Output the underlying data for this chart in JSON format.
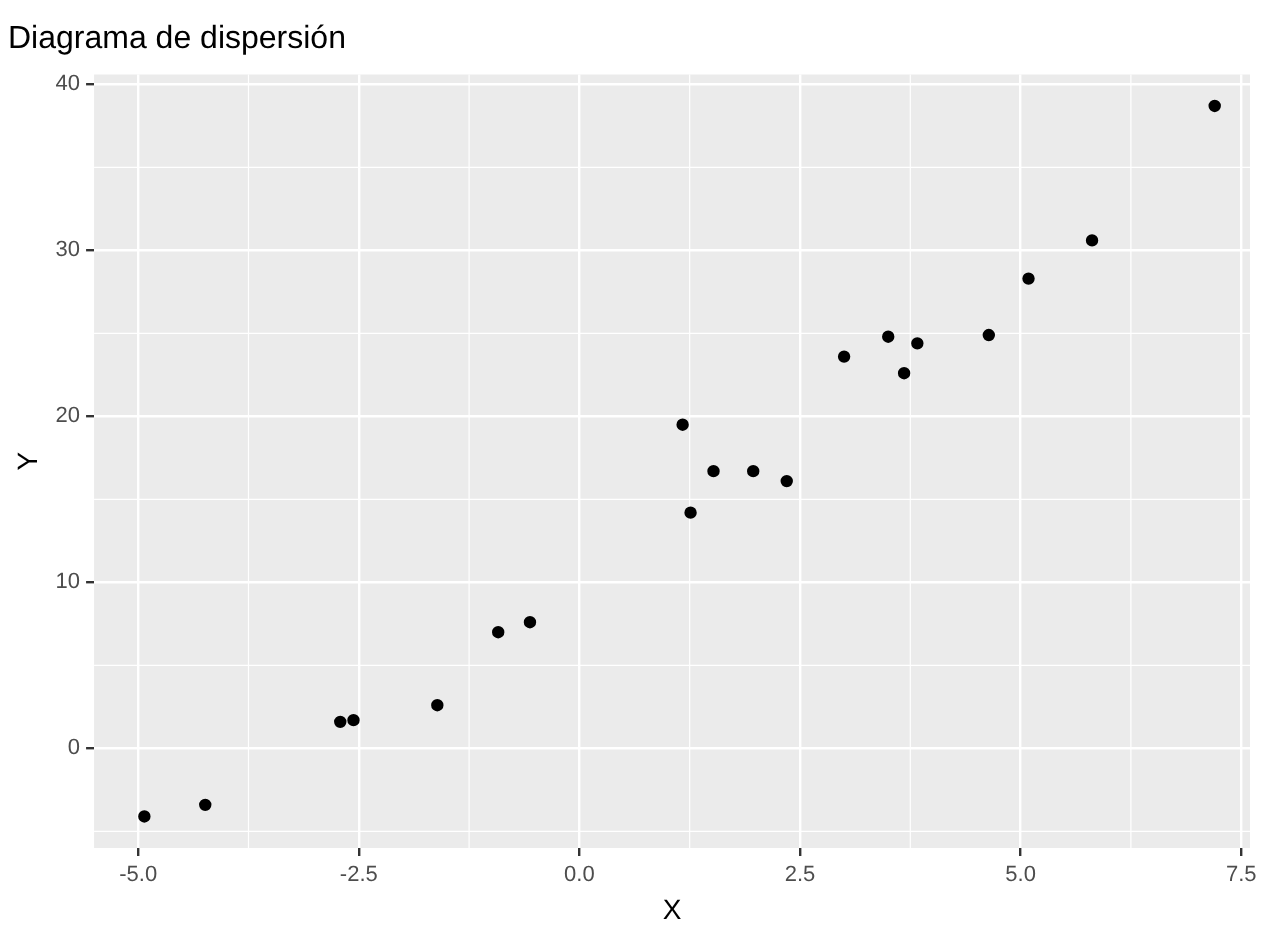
{
  "chart_data": {
    "type": "scatter",
    "title": "Diagrama de dispersión",
    "xlabel": "X",
    "ylabel": "Y",
    "x": [
      -4.93,
      -4.24,
      -2.71,
      -2.56,
      -1.61,
      -0.92,
      -0.56,
      1.17,
      1.26,
      1.52,
      1.97,
      2.35,
      3.0,
      3.5,
      3.68,
      3.83,
      4.64,
      5.09,
      5.81,
      7.2
    ],
    "series": [
      {
        "color": "#000000",
        "values": [
          -4.1,
          -3.4,
          1.6,
          1.7,
          2.6,
          7.0,
          7.6,
          19.5,
          14.2,
          16.7,
          16.7,
          16.1,
          23.6,
          24.8,
          22.6,
          24.4,
          24.9,
          28.3,
          30.6,
          38.7
        ]
      }
    ],
    "xlim": [
      -5.5,
      7.6
    ],
    "xticks": [
      {
        "value": -5,
        "label": "-5.0"
      },
      -2.5,
      {
        "value": 0,
        "label": "0.0"
      },
      2.5,
      {
        "value": 5,
        "label": "5.0"
      },
      7.5
    ],
    "ylim": [
      -6,
      40.6
    ],
    "yticks": [
      0,
      10,
      20,
      30,
      40
    ],
    "grid": true,
    "legend": false,
    "marker": "circle"
  }
}
